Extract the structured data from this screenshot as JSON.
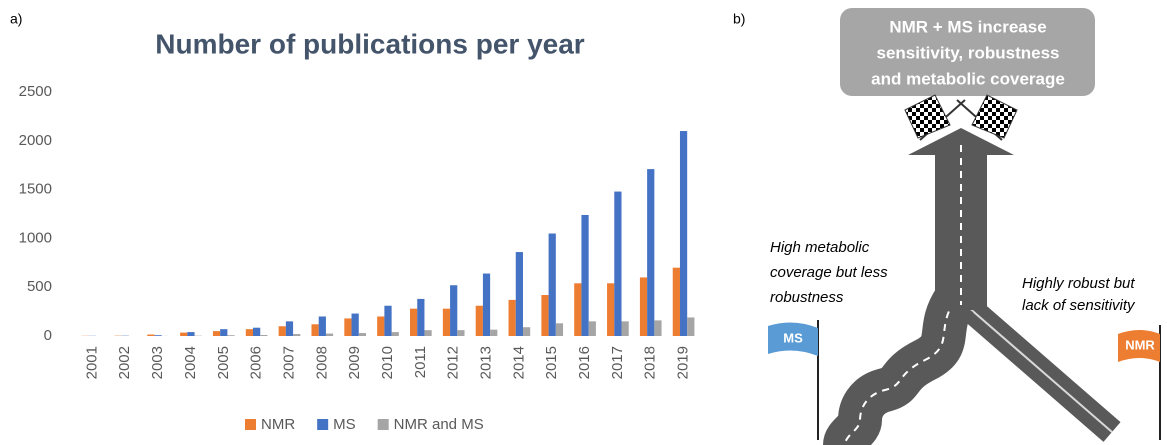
{
  "panel_labels": [
    "a)",
    "b)"
  ],
  "chart_data": {
    "type": "bar",
    "title": "Number of publications per year",
    "categories": [
      "2001",
      "2002",
      "2003",
      "2004",
      "2005",
      "2006",
      "2007",
      "2008",
      "2009",
      "2010",
      "2011",
      "2012",
      "2013",
      "2014",
      "2015",
      "2016",
      "2017",
      "2018",
      "2019"
    ],
    "series": [
      {
        "name": "NMR",
        "color": "#ed7d31",
        "values": [
          2,
          3,
          15,
          35,
          50,
          70,
          100,
          120,
          180,
          200,
          280,
          280,
          310,
          370,
          420,
          540,
          540,
          600,
          700
        ]
      },
      {
        "name": "MS",
        "color": "#4472c4",
        "values": [
          2,
          3,
          8,
          40,
          70,
          85,
          150,
          200,
          230,
          310,
          380,
          520,
          640,
          860,
          1050,
          1240,
          1480,
          1710,
          2100
        ]
      },
      {
        "name": "NMR and MS",
        "color": "#a5a5a5",
        "values": [
          0,
          0,
          1,
          3,
          8,
          10,
          20,
          25,
          30,
          40,
          60,
          60,
          65,
          90,
          130,
          150,
          150,
          160,
          190
        ]
      }
    ],
    "ylim": [
      0,
      2500
    ],
    "yticks": [
      0,
      500,
      1000,
      1500,
      2000,
      2500
    ],
    "grid": false,
    "legend": "bottom"
  },
  "diagram": {
    "goal": [
      "NMR + MS increase",
      "sensitivity, robustness",
      "and metabolic coverage"
    ],
    "ms_path": [
      "High metabolic",
      "coverage but less",
      "robustness"
    ],
    "nmr_path": [
      "Highly robust but",
      "lack of sensitivity"
    ],
    "ms_flag": "MS",
    "nmr_flag": "NMR"
  }
}
